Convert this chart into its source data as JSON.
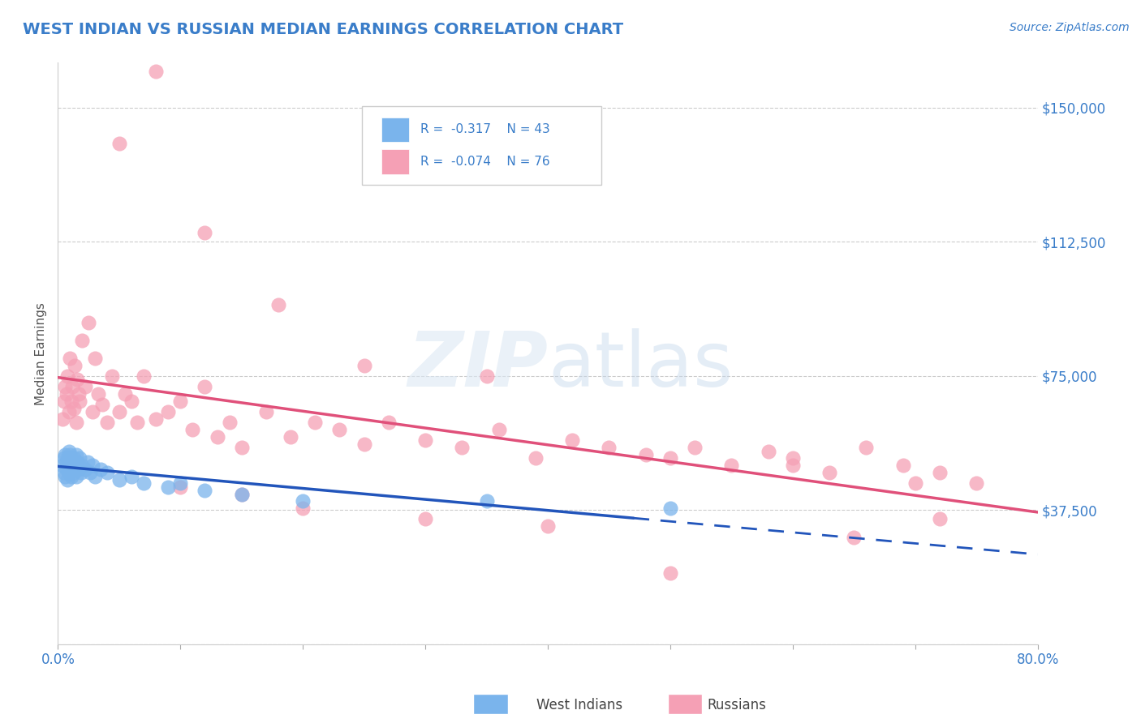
{
  "title": "WEST INDIAN VS RUSSIAN MEDIAN EARNINGS CORRELATION CHART",
  "source_text": "Source: ZipAtlas.com",
  "ylabel": "Median Earnings",
  "xlim": [
    0.0,
    0.8
  ],
  "ylim": [
    0,
    162500
  ],
  "yticks": [
    0,
    37500,
    75000,
    112500,
    150000
  ],
  "ytick_labels": [
    "",
    "$37,500",
    "$75,000",
    "$112,500",
    "$150,000"
  ],
  "xticks": [
    0.0,
    0.1,
    0.2,
    0.3,
    0.4,
    0.5,
    0.6,
    0.7,
    0.8
  ],
  "xtick_labels": [
    "0.0%",
    "",
    "",
    "",
    "",
    "",
    "",
    "",
    "80.0%"
  ],
  "title_color": "#3a7dc9",
  "tick_color": "#3a7dc9",
  "grid_color": "#cccccc",
  "legend_r1": "R =  -0.317",
  "legend_n1": "N = 43",
  "legend_r2": "R =  -0.074",
  "legend_n2": "N = 76",
  "west_indian_color": "#7ab4ec",
  "russian_color": "#f5a0b5",
  "west_indian_line_color": "#2255bb",
  "russian_line_color": "#e0507a",
  "west_indians_x": [
    0.004,
    0.005,
    0.005,
    0.006,
    0.006,
    0.007,
    0.007,
    0.008,
    0.008,
    0.009,
    0.009,
    0.01,
    0.01,
    0.011,
    0.011,
    0.012,
    0.013,
    0.013,
    0.014,
    0.015,
    0.015,
    0.016,
    0.017,
    0.018,
    0.019,
    0.02,
    0.022,
    0.024,
    0.026,
    0.028,
    0.03,
    0.035,
    0.04,
    0.05,
    0.06,
    0.07,
    0.09,
    0.1,
    0.12,
    0.15,
    0.2,
    0.35,
    0.5
  ],
  "west_indians_y": [
    50000,
    52000,
    48000,
    53000,
    47000,
    51000,
    49000,
    52000,
    46000,
    54000,
    48000,
    50000,
    53000,
    47000,
    51000,
    49000,
    52000,
    48000,
    50000,
    53000,
    47000,
    51000,
    49000,
    52000,
    48000,
    50000,
    49000,
    51000,
    48000,
    50000,
    47000,
    49000,
    48000,
    46000,
    47000,
    45000,
    44000,
    45000,
    43000,
    42000,
    40000,
    40000,
    38000
  ],
  "russians_x": [
    0.004,
    0.005,
    0.006,
    0.007,
    0.008,
    0.009,
    0.01,
    0.011,
    0.012,
    0.013,
    0.014,
    0.015,
    0.016,
    0.017,
    0.018,
    0.02,
    0.022,
    0.025,
    0.028,
    0.03,
    0.033,
    0.036,
    0.04,
    0.044,
    0.05,
    0.055,
    0.06,
    0.065,
    0.07,
    0.08,
    0.09,
    0.1,
    0.11,
    0.12,
    0.13,
    0.14,
    0.15,
    0.17,
    0.19,
    0.21,
    0.23,
    0.25,
    0.27,
    0.3,
    0.33,
    0.36,
    0.39,
    0.42,
    0.45,
    0.48,
    0.5,
    0.52,
    0.55,
    0.58,
    0.6,
    0.63,
    0.66,
    0.69,
    0.72,
    0.75,
    0.05,
    0.08,
    0.12,
    0.18,
    0.25,
    0.35,
    0.1,
    0.15,
    0.2,
    0.3,
    0.4,
    0.5,
    0.6,
    0.65,
    0.7,
    0.72
  ],
  "russians_y": [
    63000,
    68000,
    72000,
    70000,
    75000,
    65000,
    80000,
    68000,
    72000,
    66000,
    78000,
    62000,
    74000,
    70000,
    68000,
    85000,
    72000,
    90000,
    65000,
    80000,
    70000,
    67000,
    62000,
    75000,
    65000,
    70000,
    68000,
    62000,
    75000,
    63000,
    65000,
    68000,
    60000,
    72000,
    58000,
    62000,
    55000,
    65000,
    58000,
    62000,
    60000,
    56000,
    62000,
    57000,
    55000,
    60000,
    52000,
    57000,
    55000,
    53000,
    52000,
    55000,
    50000,
    54000,
    52000,
    48000,
    55000,
    50000,
    48000,
    45000,
    140000,
    160000,
    115000,
    95000,
    78000,
    75000,
    44000,
    42000,
    38000,
    35000,
    33000,
    20000,
    50000,
    30000,
    45000,
    35000
  ],
  "blue_line_x_solid_start": 0.0,
  "blue_line_x_solid_end": 0.47,
  "blue_line_x_dashed_start": 0.47,
  "blue_line_x_dashed_end": 0.8,
  "pink_line_x_start": 0.0,
  "pink_line_x_end": 0.8,
  "background_color": "#ffffff"
}
